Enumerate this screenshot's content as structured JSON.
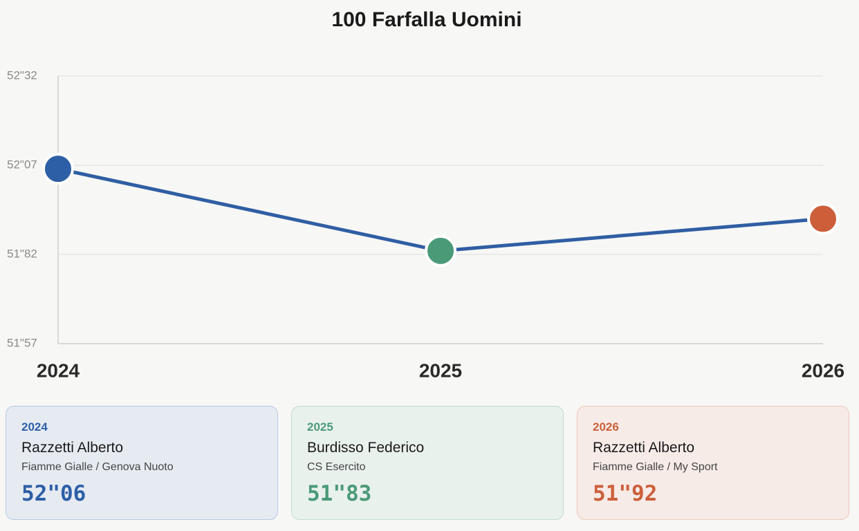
{
  "chart_data": {
    "type": "line",
    "title": "100 Farfalla Uomini",
    "categories": [
      "2024",
      "2025",
      "2026"
    ],
    "values": [
      52.06,
      51.83,
      51.92
    ],
    "value_labels": [
      "52\"06",
      "51\"83",
      "51\"92"
    ],
    "color": "#2f5ea3",
    "point_colors": [
      "#2d5fa6",
      "#4a9a78",
      "#cc5f3a"
    ],
    "athletes": [
      "Razzetti Alberto",
      "Burdisso Federico",
      "Razzetti Alberto"
    ],
    "teams": [
      "Fiamme Gialle / Genova Nuoto",
      "CS Esercito",
      "Fiamme Gialle / My Sport"
    ],
    "ylim": [
      51.57,
      52.32
    ],
    "yticks": [
      {
        "value": 51.57,
        "label": "51\"57"
      },
      {
        "value": 51.82,
        "label": "51\"82"
      },
      {
        "value": 52.07,
        "label": "52\"07"
      },
      {
        "value": 52.32,
        "label": "52\"32"
      }
    ],
    "grid": true
  }
}
